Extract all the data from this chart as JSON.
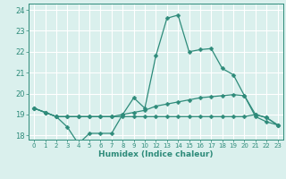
{
  "line1_y": [
    19.3,
    19.1,
    18.9,
    18.4,
    17.6,
    18.1,
    18.1,
    18.1,
    19.0,
    19.8,
    19.3,
    21.8,
    23.6,
    23.75,
    22.0,
    22.1,
    22.15,
    21.2,
    20.9,
    19.9,
    18.9,
    18.65,
    18.5
  ],
  "line2_y": [
    19.3,
    19.1,
    18.9,
    18.9,
    18.9,
    18.9,
    18.9,
    18.9,
    19.0,
    19.1,
    19.2,
    19.4,
    19.5,
    19.6,
    19.7,
    19.8,
    19.85,
    19.9,
    19.95,
    19.9,
    19.0,
    18.85,
    18.5
  ],
  "line3_y": [
    19.3,
    19.1,
    18.9,
    18.9,
    18.9,
    18.9,
    18.9,
    18.9,
    18.9,
    18.9,
    18.9,
    18.9,
    18.9,
    18.9,
    18.9,
    18.9,
    18.9,
    18.9,
    18.9,
    18.9,
    19.0,
    18.85,
    18.5
  ],
  "x_positions": [
    0,
    1,
    2,
    3,
    4,
    5,
    6,
    7,
    8,
    9,
    10,
    11,
    12,
    13,
    14,
    15,
    16,
    17,
    18,
    19,
    20,
    21,
    22
  ],
  "x_labels": [
    "0",
    "1",
    "2",
    "3",
    "4",
    "5",
    "6",
    "7",
    "8",
    "9",
    "10",
    "12",
    "13",
    "14",
    "15",
    "16",
    "17",
    "18",
    "19",
    "20",
    "21",
    "22",
    "23"
  ],
  "color": "#2e8b7a",
  "bg_color": "#daf0ed",
  "grid_color": "#ffffff",
  "xlabel": "Humidex (Indice chaleur)",
  "ylim": [
    17.8,
    24.3
  ],
  "yticks": [
    18,
    19,
    20,
    21,
    22,
    23,
    24
  ],
  "marker": "D",
  "markersize": 2.5
}
